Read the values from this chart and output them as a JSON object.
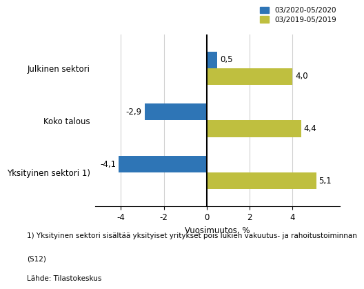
{
  "categories": [
    "Yksityinen sektori 1)",
    "Koko talous",
    "Julkinen sektori"
  ],
  "series_2020": [
    -4.1,
    -2.9,
    0.5
  ],
  "series_2019": [
    5.1,
    4.4,
    4.0
  ],
  "color_2020": "#2E75B6",
  "color_2019": "#BFBF3F",
  "legend_2020": "03/2020-05/2020",
  "legend_2019": "03/2019-05/2019",
  "xlabel": "Vuosimuutos, %",
  "xlim": [
    -5.2,
    6.2
  ],
  "xticks": [
    -4,
    -2,
    0,
    2,
    4
  ],
  "footnote1": "1) Yksityinen sektori sisältää yksityiset yritykset pois lukien vakuutus- ja rahoitustoiminnan",
  "footnote2": "(S12)",
  "footnote3": "Lähde: Tilastokeskus",
  "bar_height": 0.32,
  "background_color": "#ffffff",
  "grid_color": "#d0d0d0"
}
